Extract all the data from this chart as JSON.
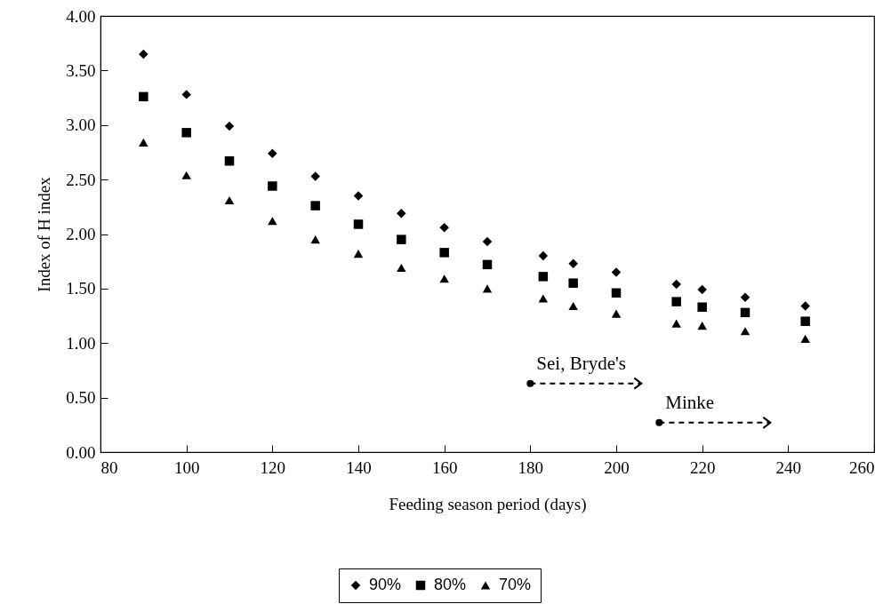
{
  "chart_data": {
    "type": "scatter",
    "xlabel": "Feeding season period (days)",
    "ylabel": "Index of H index",
    "x": [
      90,
      100,
      110,
      120,
      130,
      140,
      150,
      160,
      170,
      183,
      190,
      200,
      214,
      220,
      230,
      244
    ],
    "series": [
      {
        "name": "90%",
        "color": "#000000",
        "marker": "diamond",
        "values": [
          3.65,
          3.28,
          2.99,
          2.74,
          2.53,
          2.35,
          2.19,
          2.06,
          1.93,
          1.8,
          1.73,
          1.65,
          1.54,
          1.49,
          1.42,
          1.34
        ]
      },
      {
        "name": "80%",
        "color": "#000000",
        "marker": "square",
        "values": [
          3.26,
          2.93,
          2.67,
          2.44,
          2.26,
          2.09,
          1.95,
          1.83,
          1.72,
          1.61,
          1.55,
          1.46,
          1.38,
          1.33,
          1.28,
          1.2
        ]
      },
      {
        "name": "70%",
        "color": "#000000",
        "marker": "triangle",
        "values": [
          2.84,
          2.54,
          2.31,
          2.12,
          1.95,
          1.82,
          1.69,
          1.59,
          1.5,
          1.41,
          1.34,
          1.27,
          1.18,
          1.16,
          1.11,
          1.04
        ]
      }
    ],
    "xlim": [
      80,
      260
    ],
    "xticks": [
      80,
      100,
      120,
      140,
      160,
      180,
      200,
      220,
      240,
      260
    ],
    "ylim": [
      0,
      4
    ],
    "yticks": [
      {
        "value": 0,
        "label": "0.00"
      },
      {
        "value": 0.5,
        "label": "0.50"
      },
      {
        "value": 1,
        "label": "1.00"
      },
      {
        "value": 1.5,
        "label": "1.50"
      },
      {
        "value": 2,
        "label": "2.00"
      },
      {
        "value": 2.5,
        "label": "2.50"
      },
      {
        "value": 3,
        "label": "3.00"
      },
      {
        "value": 3.5,
        "label": "3.50"
      },
      {
        "value": 4,
        "label": "4.00"
      }
    ],
    "annotations": [
      {
        "text": "Sei, Bryde's",
        "x": 180,
        "y": 0.63
      },
      {
        "text": "Minke",
        "x": 210,
        "y": 0.27
      }
    ],
    "legend": "bottom",
    "grid": false
  }
}
